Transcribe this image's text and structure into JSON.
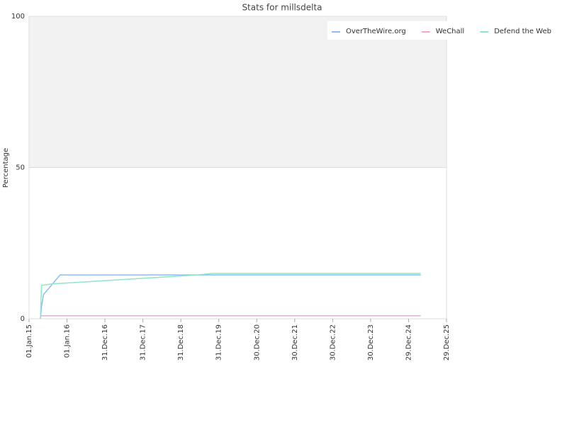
{
  "chart_data": {
    "type": "line",
    "title": "Stats for millsdelta",
    "y_label": "Percentage",
    "xlim": [
      "2015-01-01",
      "2025-12-29"
    ],
    "xticks": [
      {
        "value": "2015-01-01",
        "label": "01.Jan.15"
      },
      {
        "value": "2016-01-01",
        "label": "01.Jan.16"
      },
      {
        "value": "2016-12-31",
        "label": "31.Dec.16"
      },
      {
        "value": "2017-12-31",
        "label": "31.Dec.17"
      },
      {
        "value": "2018-12-31",
        "label": "31.Dec.18"
      },
      {
        "value": "2019-12-31",
        "label": "31.Dec.19"
      },
      {
        "value": "2020-12-30",
        "label": "30.Dec.20"
      },
      {
        "value": "2021-12-30",
        "label": "30.Dec.21"
      },
      {
        "value": "2022-12-30",
        "label": "30.Dec.22"
      },
      {
        "value": "2023-12-30",
        "label": "30.Dec.23"
      },
      {
        "value": "2024-12-29",
        "label": "29.Dec.24"
      },
      {
        "value": "2025-12-29",
        "label": "29.Dec.25"
      }
    ],
    "ylim": [
      0,
      100
    ],
    "yticks": [
      0,
      50,
      100
    ],
    "grid": true,
    "legend": "top-right",
    "series": [
      {
        "name": "OverTheWire.org",
        "color": "#8fbdf0",
        "x": [
          "2015-04-20",
          "2015-05-01",
          "2015-05-20",
          "2015-10-27",
          "2025-04-25"
        ],
        "values": [
          0,
          4,
          8,
          14.5,
          14.5
        ]
      },
      {
        "name": "WeChall",
        "color": "#f2a6d3",
        "x": [
          "2015-04-20",
          "2025-04-25"
        ],
        "values": [
          1,
          1
        ]
      },
      {
        "name": "Defend the Web",
        "color": "#8ee6c6",
        "x": [
          "2015-04-20",
          "2015-05-01",
          "2015-08-01",
          "2019-06-17",
          "2019-11-01",
          "2025-04-25"
        ],
        "values": [
          0,
          11,
          11.5,
          14.5,
          15,
          15
        ]
      }
    ]
  }
}
